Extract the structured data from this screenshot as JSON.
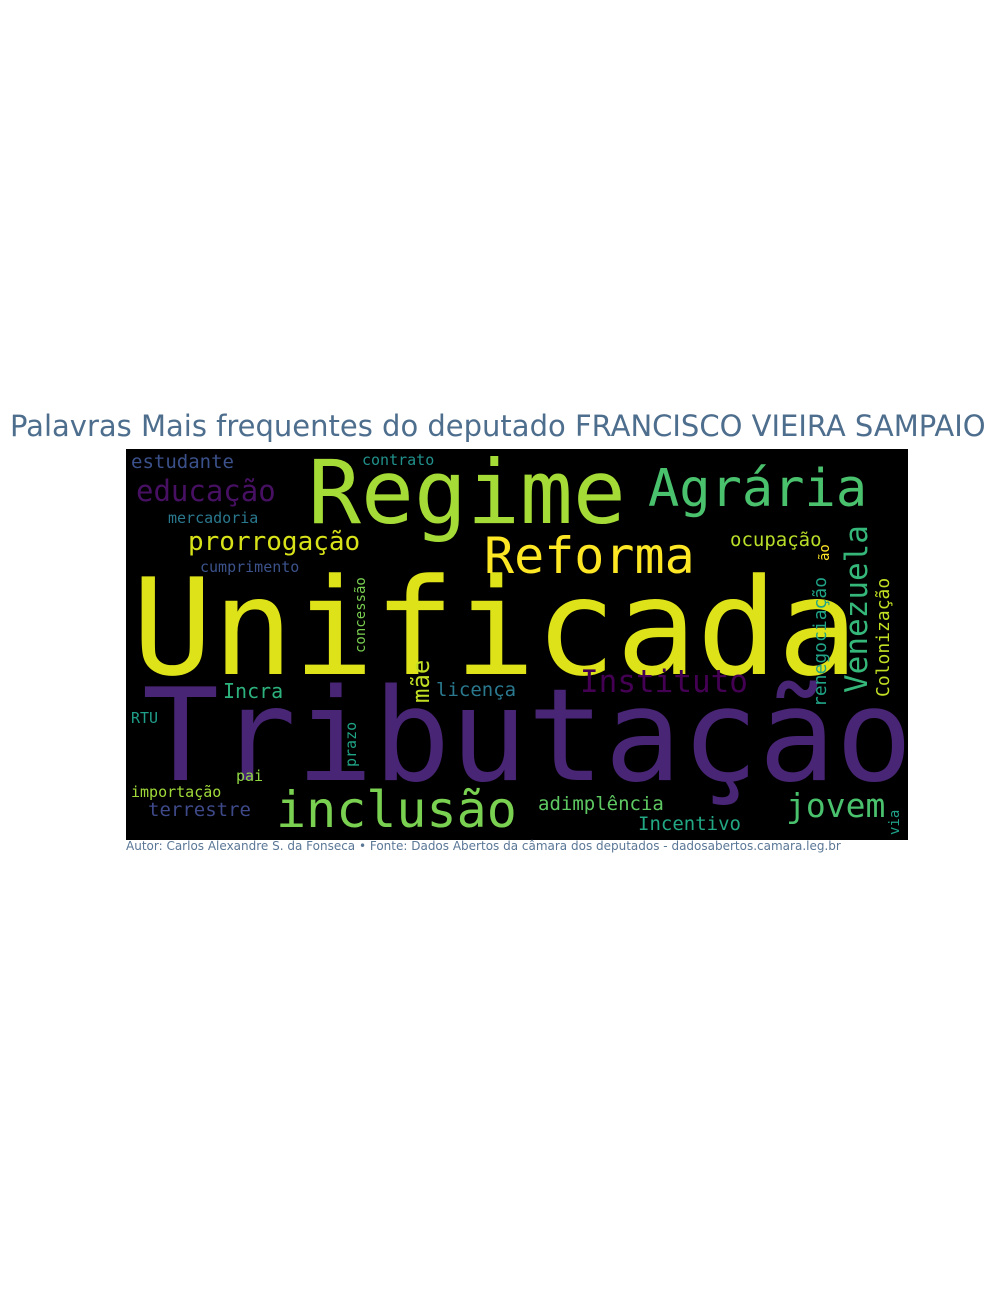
{
  "title": "Palavras Mais frequentes do deputado FRANCISCO VIEIRA SAMPAIO",
  "credit": "Autor: Carlos Alexandre S. da Fonseca • Fonte: Dados Abertos da câmara dos deputados - dadosabertos.camara.leg.br",
  "words": [
    {
      "text": "Unificada",
      "color": "#dde318",
      "vertical": false
    },
    {
      "text": "Tributação",
      "color": "#482575",
      "vertical": false
    },
    {
      "text": "Regime",
      "color": "#a5db36",
      "vertical": false
    },
    {
      "text": "Agrária",
      "color": "#4ac16d",
      "vertical": false
    },
    {
      "text": "Reforma",
      "color": "#fde725",
      "vertical": false
    },
    {
      "text": "inclusão",
      "color": "#7ad151",
      "vertical": false
    },
    {
      "text": "educação",
      "color": "#471063",
      "vertical": false
    },
    {
      "text": "prorrogação",
      "color": "#d8e219",
      "vertical": false
    },
    {
      "text": "Venezuela",
      "color": "#35b779",
      "vertical": true
    },
    {
      "text": "Instituto",
      "color": "#440154",
      "vertical": false
    },
    {
      "text": "jovem",
      "color": "#4ac16d",
      "vertical": false
    },
    {
      "text": "mãe",
      "color": "#c2df23",
      "vertical": true
    },
    {
      "text": "estudante",
      "color": "#3b518b",
      "vertical": false
    },
    {
      "text": "ocupação",
      "color": "#b8de29",
      "vertical": false
    },
    {
      "text": "adimplência",
      "color": "#5ec962",
      "vertical": false
    },
    {
      "text": "licença",
      "color": "#2a788e",
      "vertical": false
    },
    {
      "text": "renegociação",
      "color": "#20a386",
      "vertical": true
    },
    {
      "text": "Colonização",
      "color": "#c2df23",
      "vertical": true
    },
    {
      "text": "Incentivo",
      "color": "#22a884",
      "vertical": false
    },
    {
      "text": "Incra",
      "color": "#2db27d",
      "vertical": false
    },
    {
      "text": "terrestre",
      "color": "#3e4989",
      "vertical": false
    },
    {
      "text": "mercadoria",
      "color": "#2a788e",
      "vertical": false
    },
    {
      "text": "cumprimento",
      "color": "#3b528b",
      "vertical": false
    },
    {
      "text": "importação",
      "color": "#a0da39",
      "vertical": false
    },
    {
      "text": "contrato",
      "color": "#21918c",
      "vertical": false
    },
    {
      "text": "concessão",
      "color": "#7ad151",
      "vertical": true
    },
    {
      "text": "prazo",
      "color": "#20a486",
      "vertical": true
    },
    {
      "text": "RTU",
      "color": "#1f9e89",
      "vertical": false
    },
    {
      "text": "pai",
      "color": "#90d743",
      "vertical": false
    },
    {
      "text": "via",
      "color": "#1fa188",
      "vertical": true
    },
    {
      "text": "ão",
      "color": "#fde725",
      "vertical": true
    }
  ]
}
